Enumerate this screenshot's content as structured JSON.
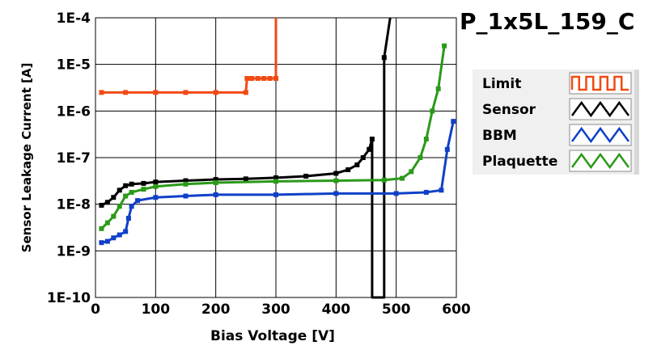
{
  "chart_data": {
    "type": "line",
    "title": "P_1x5L_159_C",
    "xlabel": "Bias Voltage [V]",
    "ylabel": "Sensor Leakage Current [A]",
    "xlim": [
      0,
      600
    ],
    "ylim": [
      1e-10,
      0.0001
    ],
    "yscale": "log",
    "grid": true,
    "legend_position": "right",
    "xticks": [
      0,
      100,
      200,
      300,
      400,
      500,
      600
    ],
    "xtick_labels": [
      "0",
      "100",
      "200",
      "300",
      "400",
      "500",
      "600"
    ],
    "yticks": [
      1e-10,
      1e-09,
      1e-08,
      1e-07,
      1e-06,
      1e-05,
      0.0001
    ],
    "ytick_labels": [
      "1E-10",
      "1E-9",
      "1E-8",
      "1E-7",
      "1E-6",
      "1E-5",
      "1E-4"
    ],
    "series": [
      {
        "name": "Limit",
        "color": "#f04a14",
        "marker": "square",
        "points": [
          [
            10,
            2.5e-06
          ],
          [
            50,
            2.5e-06
          ],
          [
            100,
            2.5e-06
          ],
          [
            150,
            2.5e-06
          ],
          [
            200,
            2.5e-06
          ],
          [
            250,
            2.5e-06
          ],
          [
            252,
            5e-06
          ],
          [
            260,
            5e-06
          ],
          [
            270,
            5e-06
          ],
          [
            280,
            5e-06
          ],
          [
            290,
            5e-06
          ],
          [
            300,
            5e-06
          ],
          [
            300,
            0.0001
          ]
        ]
      },
      {
        "name": "Sensor",
        "color": "#000000",
        "marker": "square",
        "points": [
          [
            10,
            9.5e-09
          ],
          [
            20,
            1.1e-08
          ],
          [
            30,
            1.4e-08
          ],
          [
            40,
            2e-08
          ],
          [
            50,
            2.5e-08
          ],
          [
            60,
            2.7e-08
          ],
          [
            80,
            2.8e-08
          ],
          [
            100,
            3e-08
          ],
          [
            150,
            3.2e-08
          ],
          [
            200,
            3.4e-08
          ],
          [
            250,
            3.5e-08
          ],
          [
            300,
            3.7e-08
          ],
          [
            350,
            4e-08
          ],
          [
            400,
            4.6e-08
          ],
          [
            420,
            5.5e-08
          ],
          [
            435,
            7e-08
          ],
          [
            445,
            1e-07
          ],
          [
            455,
            1.5e-07
          ],
          [
            460,
            2.5e-07
          ],
          [
            460,
            1e-10
          ],
          [
            480,
            1e-10
          ],
          [
            480,
            1.4e-05
          ],
          [
            490,
            0.0001
          ]
        ]
      },
      {
        "name": "BBM",
        "color": "#1040c8",
        "marker": "square",
        "points": [
          [
            10,
            1.5e-09
          ],
          [
            20,
            1.6e-09
          ],
          [
            30,
            1.9e-09
          ],
          [
            40,
            2.2e-09
          ],
          [
            50,
            2.6e-09
          ],
          [
            55,
            5e-09
          ],
          [
            60,
            9e-09
          ],
          [
            70,
            1.2e-08
          ],
          [
            100,
            1.4e-08
          ],
          [
            150,
            1.5e-08
          ],
          [
            200,
            1.6e-08
          ],
          [
            300,
            1.6e-08
          ],
          [
            400,
            1.7e-08
          ],
          [
            500,
            1.7e-08
          ],
          [
            550,
            1.8e-08
          ],
          [
            575,
            2e-08
          ],
          [
            585,
            1.5e-07
          ],
          [
            595,
            6e-07
          ]
        ]
      },
      {
        "name": "Plaquette",
        "color": "#2a9a18",
        "marker": "square",
        "points": [
          [
            10,
            3e-09
          ],
          [
            20,
            4e-09
          ],
          [
            30,
            5.5e-09
          ],
          [
            40,
            9e-09
          ],
          [
            50,
            1.5e-08
          ],
          [
            60,
            1.8e-08
          ],
          [
            80,
            2.1e-08
          ],
          [
            100,
            2.4e-08
          ],
          [
            150,
            2.7e-08
          ],
          [
            200,
            2.9e-08
          ],
          [
            300,
            3.1e-08
          ],
          [
            400,
            3.2e-08
          ],
          [
            480,
            3.3e-08
          ],
          [
            510,
            3.6e-08
          ],
          [
            525,
            5e-08
          ],
          [
            540,
            1e-07
          ],
          [
            550,
            2.5e-07
          ],
          [
            560,
            1e-06
          ],
          [
            570,
            3e-06
          ],
          [
            580,
            2.5e-05
          ]
        ]
      }
    ]
  }
}
